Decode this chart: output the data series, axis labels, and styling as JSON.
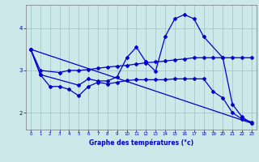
{
  "xlabel": "Graphe des températures (°c)",
  "background_color": "#cce8e8",
  "grid_color": "#aacccc",
  "line_color": "#0000cc",
  "xlim": [
    -0.5,
    23.5
  ],
  "ylim": [
    1.6,
    4.55
  ],
  "yticks": [
    2,
    3,
    4
  ],
  "xticks": [
    0,
    1,
    2,
    3,
    4,
    5,
    6,
    7,
    8,
    9,
    10,
    11,
    12,
    13,
    14,
    15,
    16,
    17,
    18,
    19,
    20,
    21,
    22,
    23
  ],
  "lines": [
    {
      "x": [
        0,
        1,
        5,
        6,
        7,
        8,
        9,
        10,
        11,
        12,
        13,
        14,
        15,
        16,
        17,
        18,
        20,
        21,
        22,
        23
      ],
      "y": [
        3.5,
        2.9,
        2.65,
        2.8,
        2.75,
        2.75,
        2.85,
        3.3,
        3.55,
        3.2,
        2.98,
        3.8,
        4.22,
        4.32,
        4.22,
        3.8,
        3.3,
        2.2,
        1.9,
        1.75
      ]
    },
    {
      "x": [
        0,
        1,
        3,
        4,
        5,
        6,
        7,
        8,
        9,
        10,
        11,
        12,
        13,
        14,
        15,
        16,
        17,
        18,
        19,
        20,
        21,
        22,
        23
      ],
      "y": [
        3.5,
        3.0,
        2.95,
        3.0,
        3.0,
        3.02,
        3.05,
        3.08,
        3.1,
        3.12,
        3.15,
        3.18,
        3.2,
        3.22,
        3.25,
        3.27,
        3.3,
        3.3,
        3.3,
        3.3,
        3.3,
        3.3,
        3.3
      ]
    },
    {
      "x": [
        0,
        1,
        2,
        3,
        4,
        5,
        6,
        7,
        8,
        9,
        10,
        11,
        12,
        13,
        14,
        15,
        16,
        17,
        18,
        19,
        20,
        21,
        22,
        23
      ],
      "y": [
        3.5,
        2.9,
        2.62,
        2.62,
        2.55,
        2.4,
        2.62,
        2.72,
        2.68,
        2.72,
        2.76,
        2.78,
        2.78,
        2.78,
        2.78,
        2.8,
        2.8,
        2.8,
        2.8,
        2.5,
        2.35,
        2.0,
        1.85,
        1.78
      ]
    },
    {
      "x": [
        0,
        23
      ],
      "y": [
        3.5,
        1.75
      ]
    }
  ]
}
